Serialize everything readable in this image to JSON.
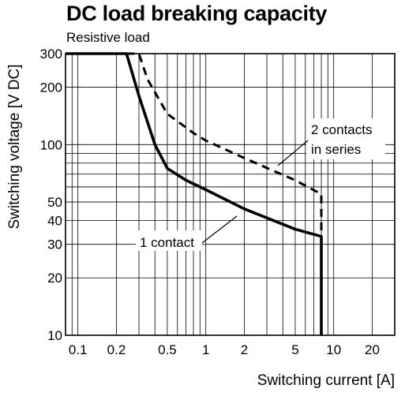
{
  "chart_data": {
    "type": "line",
    "title": "DC load breaking capacity",
    "subtitle": "Resistive load",
    "xlabel": "Switching current [A]",
    "ylabel": "Switching voltage [V DC]",
    "x_scale": "log",
    "y_scale": "log",
    "xlim": [
      0.08,
      30
    ],
    "ylim": [
      10,
      300
    ],
    "grid": true,
    "x_ticks": [
      {
        "value": 0.1,
        "label": "0.1"
      },
      {
        "value": 0.2,
        "label": "0.2"
      },
      {
        "value": 0.5,
        "label": "0.5"
      },
      {
        "value": 1,
        "label": "1"
      },
      {
        "value": 2,
        "label": "2"
      },
      {
        "value": 5,
        "label": "5"
      },
      {
        "value": 10,
        "label": "10"
      },
      {
        "value": 20,
        "label": "20"
      }
    ],
    "y_ticks": [
      {
        "value": 10,
        "label": "10"
      },
      {
        "value": 20,
        "label": "20"
      },
      {
        "value": 30,
        "label": "30"
      },
      {
        "value": 40,
        "label": "40"
      },
      {
        "value": 50,
        "label": "50"
      },
      {
        "value": 100,
        "label": "100"
      },
      {
        "value": 200,
        "label": "200"
      },
      {
        "value": 300,
        "label": "300"
      }
    ],
    "series": [
      {
        "name": "1 contact",
        "style": "solid",
        "color": "#000000",
        "points": [
          [
            0.08,
            300
          ],
          [
            0.24,
            300
          ],
          [
            0.3,
            180
          ],
          [
            0.4,
            100
          ],
          [
            0.5,
            75
          ],
          [
            0.7,
            65
          ],
          [
            1,
            58
          ],
          [
            2,
            46
          ],
          [
            5,
            36
          ],
          [
            8,
            33
          ],
          [
            8,
            10
          ]
        ]
      },
      {
        "name": "2 contacts in series",
        "style": "dashed",
        "color": "#000000",
        "points": [
          [
            0.24,
            300
          ],
          [
            0.3,
            300
          ],
          [
            0.35,
            220
          ],
          [
            0.5,
            145
          ],
          [
            0.8,
            115
          ],
          [
            1,
            105
          ],
          [
            2,
            85
          ],
          [
            5,
            65
          ],
          [
            8,
            55
          ],
          [
            8,
            10
          ]
        ]
      }
    ],
    "annotations": [
      {
        "label": "2 contacts",
        "label_line2": "in series",
        "points_to": "2 contacts in series"
      },
      {
        "label": "1 contact",
        "points_to": "1 contact"
      }
    ]
  }
}
